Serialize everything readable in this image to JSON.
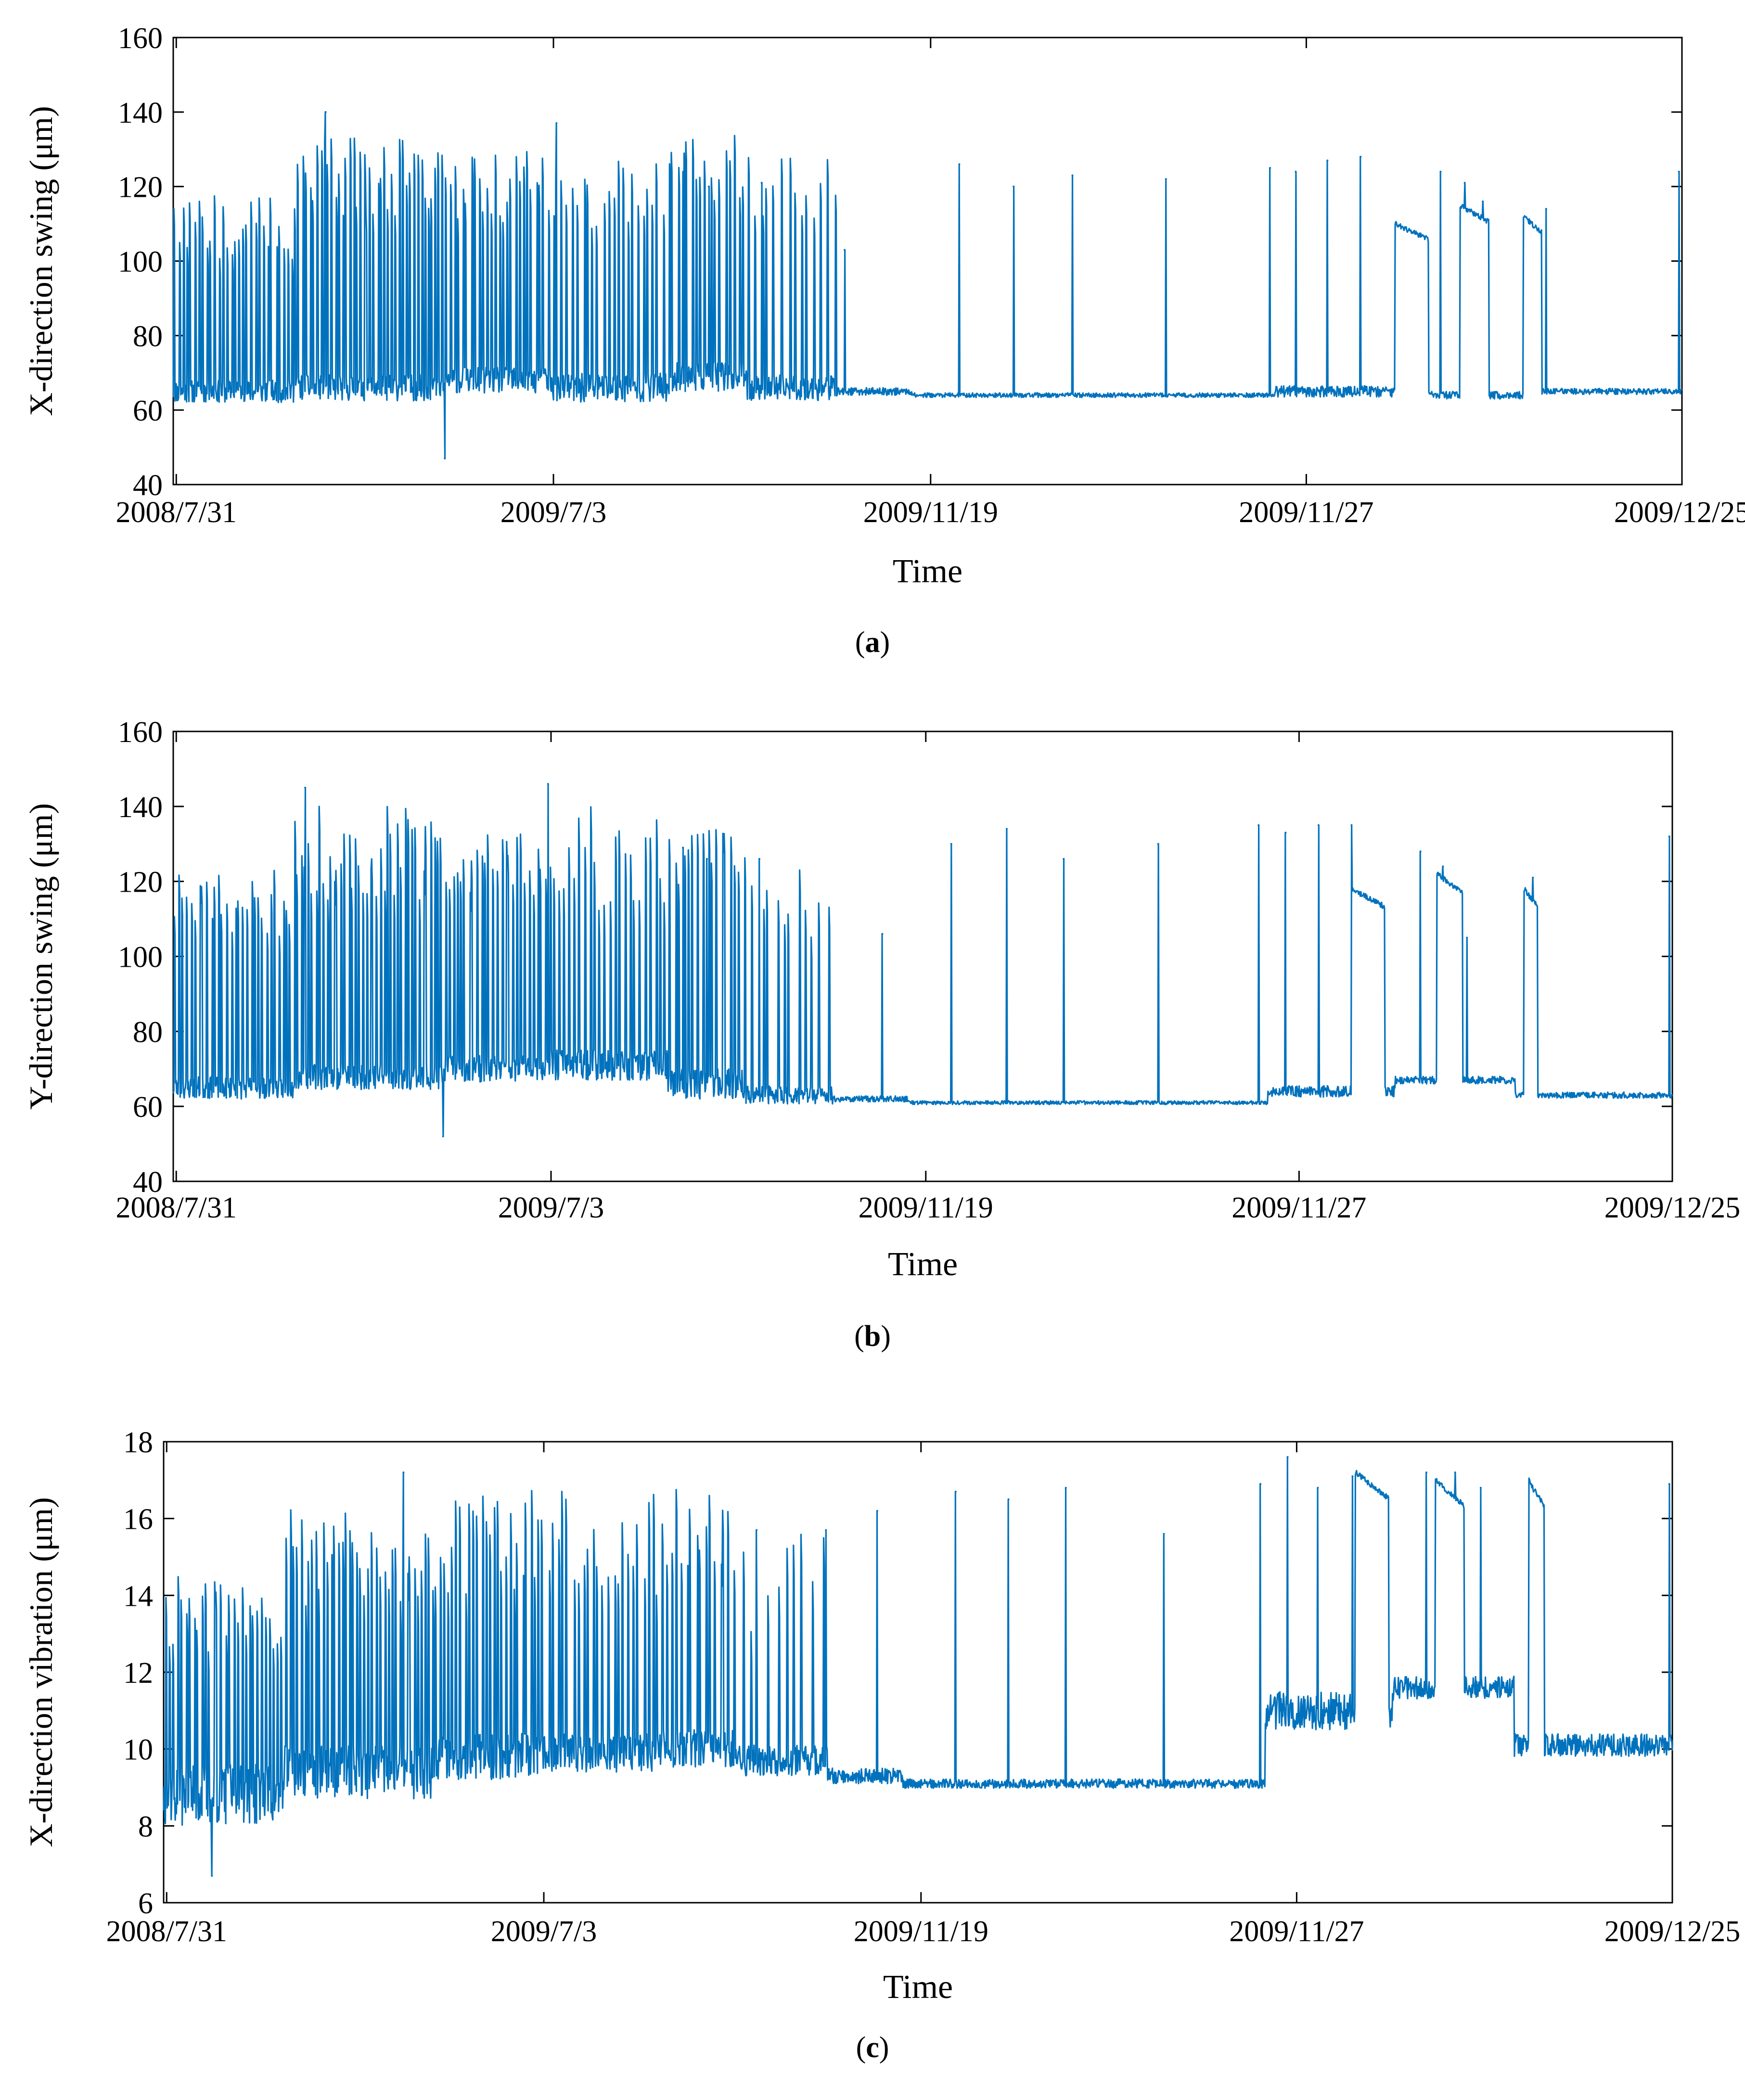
{
  "chart_data": [
    {
      "type": "line",
      "caption": "a",
      "ylabel": "X-direction swing (μm)",
      "xlabel": "Time",
      "ylim": [
        40,
        160
      ],
      "yticks": [
        40,
        60,
        80,
        100,
        120,
        140,
        160
      ],
      "xtick_labels": [
        "2008/7/31",
        "2009/7/3",
        "2009/11/19",
        "2009/11/27",
        "2009/12/25"
      ],
      "color": "#0072BD",
      "series": [
        {
          "name": "X-direction swing",
          "segments": [
            {
              "start": 0.0,
              "end": 0.08,
              "base": 65,
              "noise": 3.0,
              "spikes": 30,
              "spike_lo": 100,
              "spike_hi": 118
            },
            {
              "start": 0.08,
              "end": 0.18,
              "base": 66,
              "noise": 3.5,
              "spikes": 42,
              "spike_lo": 112,
              "spike_hi": 133
            },
            {
              "start": 0.18,
              "end": 0.25,
              "base": 68,
              "noise": 3.5,
              "spikes": 26,
              "spike_lo": 110,
              "spike_hi": 130
            },
            {
              "start": 0.25,
              "end": 0.33,
              "base": 66,
              "noise": 4.0,
              "spikes": 24,
              "spike_lo": 108,
              "spike_hi": 128
            },
            {
              "start": 0.33,
              "end": 0.38,
              "base": 69,
              "noise": 4.0,
              "spikes": 16,
              "spike_lo": 115,
              "spike_hi": 135
            },
            {
              "start": 0.38,
              "end": 0.44,
              "base": 66,
              "noise": 3.5,
              "spikes": 14,
              "spike_lo": 110,
              "spike_hi": 128
            },
            {
              "start": 0.44,
              "end": 0.49,
              "base": 65,
              "noise": 1.0,
              "spikes": 0,
              "spike_lo": 0,
              "spike_hi": 0
            },
            {
              "start": 0.49,
              "end": 0.73,
              "base": 64,
              "noise": 0.6,
              "spikes": 0,
              "spike_lo": 0,
              "spike_hi": 0
            },
            {
              "start": 0.73,
              "end": 0.815,
              "base": 65,
              "noise": 1.5,
              "spikes": 0,
              "spike_lo": 0,
              "spike_hi": 0
            },
            {
              "start": 0.815,
              "end": 0.895,
              "base": 64,
              "noise": 1.0,
              "spikes": 0,
              "spike_lo": 0,
              "spike_hi": 0
            },
            {
              "start": 0.895,
              "end": 1.0,
              "base": 65,
              "noise": 0.8,
              "spikes": 0,
              "spike_lo": 0,
              "spike_hi": 0
            }
          ],
          "peaks": [
            {
              "x": 0.101,
              "y": 140
            },
            {
              "x": 0.18,
              "y": 47
            },
            {
              "x": 0.254,
              "y": 137
            },
            {
              "x": 0.338,
              "y": 124
            },
            {
              "x": 0.355,
              "y": 120
            },
            {
              "x": 0.39,
              "y": 121
            },
            {
              "x": 0.445,
              "y": 103
            },
            {
              "x": 0.521,
              "y": 126
            },
            {
              "x": 0.557,
              "y": 120
            },
            {
              "x": 0.596,
              "y": 123
            },
            {
              "x": 0.658,
              "y": 122
            },
            {
              "x": 0.727,
              "y": 125
            },
            {
              "x": 0.744,
              "y": 124
            },
            {
              "x": 0.765,
              "y": 127
            },
            {
              "x": 0.787,
              "y": 128
            },
            {
              "x": 0.84,
              "y": 124
            },
            {
              "x": 0.856,
              "y": 121
            },
            {
              "x": 0.868,
              "y": 116
            },
            {
              "x": 0.91,
              "y": 114
            },
            {
              "x": 0.998,
              "y": 124
            }
          ],
          "plateaus": [
            {
              "start": 0.81,
              "end": 0.832,
              "y": 110
            },
            {
              "start": 0.853,
              "end": 0.872,
              "y": 115
            },
            {
              "start": 0.895,
              "end": 0.907,
              "y": 112
            }
          ]
        }
      ]
    },
    {
      "type": "line",
      "caption": "b",
      "ylabel": "Y-direction swing (μm)",
      "xlabel": "Time",
      "ylim": [
        40,
        160
      ],
      "yticks": [
        40,
        60,
        80,
        100,
        120,
        140,
        160
      ],
      "xtick_labels": [
        "2008/7/31",
        "2009/7/3",
        "2009/11/19",
        "2009/11/27",
        "2009/12/25"
      ],
      "color": "#0072BD",
      "series": [
        {
          "name": "Y-direction swing",
          "segments": [
            {
              "start": 0.0,
              "end": 0.08,
              "base": 65,
              "noise": 3.0,
              "spikes": 30,
              "spike_lo": 105,
              "spike_hi": 124
            },
            {
              "start": 0.08,
              "end": 0.18,
              "base": 68,
              "noise": 3.5,
              "spikes": 42,
              "spike_lo": 115,
              "spike_hi": 140
            },
            {
              "start": 0.18,
              "end": 0.25,
              "base": 70,
              "noise": 3.5,
              "spikes": 26,
              "spike_lo": 115,
              "spike_hi": 135
            },
            {
              "start": 0.25,
              "end": 0.33,
              "base": 71,
              "noise": 4.0,
              "spikes": 24,
              "spike_lo": 112,
              "spike_hi": 140
            },
            {
              "start": 0.33,
              "end": 0.38,
              "base": 66,
              "noise": 4.0,
              "spikes": 16,
              "spike_lo": 115,
              "spike_hi": 135
            },
            {
              "start": 0.38,
              "end": 0.44,
              "base": 63,
              "noise": 2.5,
              "spikes": 12,
              "spike_lo": 105,
              "spike_hi": 128
            },
            {
              "start": 0.44,
              "end": 0.49,
              "base": 62,
              "noise": 0.8,
              "spikes": 0,
              "spike_lo": 0,
              "spike_hi": 0
            },
            {
              "start": 0.49,
              "end": 0.73,
              "base": 61,
              "noise": 0.5,
              "spikes": 0,
              "spike_lo": 0,
              "spike_hi": 0
            },
            {
              "start": 0.73,
              "end": 0.815,
              "base": 64,
              "noise": 1.5,
              "spikes": 0,
              "spike_lo": 0,
              "spike_hi": 0
            },
            {
              "start": 0.815,
              "end": 0.895,
              "base": 67,
              "noise": 1.0,
              "spikes": 0,
              "spike_lo": 0,
              "spike_hi": 0
            },
            {
              "start": 0.895,
              "end": 1.0,
              "base": 63,
              "noise": 0.8,
              "spikes": 0,
              "spike_lo": 0,
              "spike_hi": 0
            }
          ],
          "peaks": [
            {
              "x": 0.088,
              "y": 145
            },
            {
              "x": 0.18,
              "y": 52
            },
            {
              "x": 0.25,
              "y": 146
            },
            {
              "x": 0.34,
              "y": 129
            },
            {
              "x": 0.356,
              "y": 126
            },
            {
              "x": 0.391,
              "y": 126
            },
            {
              "x": 0.473,
              "y": 106
            },
            {
              "x": 0.519,
              "y": 130
            },
            {
              "x": 0.556,
              "y": 134
            },
            {
              "x": 0.594,
              "y": 126
            },
            {
              "x": 0.657,
              "y": 130
            },
            {
              "x": 0.724,
              "y": 135
            },
            {
              "x": 0.742,
              "y": 133
            },
            {
              "x": 0.764,
              "y": 135
            },
            {
              "x": 0.786,
              "y": 135
            },
            {
              "x": 0.832,
              "y": 128
            },
            {
              "x": 0.847,
              "y": 124
            },
            {
              "x": 0.863,
              "y": 105
            },
            {
              "x": 0.907,
              "y": 121
            },
            {
              "x": 0.998,
              "y": 132
            }
          ],
          "plateaus": [
            {
              "start": 0.786,
              "end": 0.808,
              "y": 118
            },
            {
              "start": 0.843,
              "end": 0.86,
              "y": 122
            },
            {
              "start": 0.901,
              "end": 0.91,
              "y": 118
            }
          ]
        }
      ]
    },
    {
      "type": "line",
      "caption": "c",
      "ylabel": "X-direction vibration (μm)",
      "xlabel": "Time",
      "ylim": [
        6,
        18
      ],
      "yticks": [
        6,
        8,
        10,
        12,
        14,
        16,
        18
      ],
      "xtick_labels": [
        "2008/7/31",
        "2009/7/3",
        "2009/11/19",
        "2009/11/27",
        "2009/12/25"
      ],
      "color": "#0072BD",
      "series": [
        {
          "name": "X-direction vibration",
          "segments": [
            {
              "start": 0.0,
              "end": 0.08,
              "base": 8.8,
              "noise": 0.8,
              "spikes": 30,
              "spike_lo": 12.5,
              "spike_hi": 14.5
            },
            {
              "start": 0.08,
              "end": 0.18,
              "base": 9.4,
              "noise": 0.7,
              "spikes": 40,
              "spike_lo": 13.5,
              "spike_hi": 16.3
            },
            {
              "start": 0.18,
              "end": 0.25,
              "base": 9.8,
              "noise": 0.6,
              "spikes": 26,
              "spike_lo": 14.0,
              "spike_hi": 16.8
            },
            {
              "start": 0.25,
              "end": 0.33,
              "base": 9.9,
              "noise": 0.5,
              "spikes": 24,
              "spike_lo": 14.0,
              "spike_hi": 16.8
            },
            {
              "start": 0.33,
              "end": 0.38,
              "base": 10.0,
              "noise": 0.5,
              "spikes": 16,
              "spike_lo": 14.5,
              "spike_hi": 16.8
            },
            {
              "start": 0.38,
              "end": 0.44,
              "base": 9.7,
              "noise": 0.4,
              "spikes": 10,
              "spike_lo": 13.0,
              "spike_hi": 16.0
            },
            {
              "start": 0.44,
              "end": 0.49,
              "base": 9.3,
              "noise": 0.2,
              "spikes": 0,
              "spike_lo": 0,
              "spike_hi": 0
            },
            {
              "start": 0.49,
              "end": 0.73,
              "base": 9.1,
              "noise": 0.12,
              "spikes": 0,
              "spike_lo": 0,
              "spike_hi": 0
            },
            {
              "start": 0.73,
              "end": 0.815,
              "base": 11.0,
              "noise": 0.5,
              "spikes": 0,
              "spike_lo": 0,
              "spike_hi": 0
            },
            {
              "start": 0.815,
              "end": 0.895,
              "base": 11.6,
              "noise": 0.3,
              "spikes": 0,
              "spike_lo": 0,
              "spike_hi": 0
            },
            {
              "start": 0.895,
              "end": 1.0,
              "base": 10.1,
              "noise": 0.3,
              "spikes": 0,
              "spike_lo": 0,
              "spike_hi": 0
            }
          ],
          "peaks": [
            {
              "x": 0.032,
              "y": 6.7
            },
            {
              "x": 0.159,
              "y": 17.2
            },
            {
              "x": 0.393,
              "y": 15.7
            },
            {
              "x": 0.439,
              "y": 15.7
            },
            {
              "x": 0.473,
              "y": 16.2
            },
            {
              "x": 0.525,
              "y": 16.7
            },
            {
              "x": 0.56,
              "y": 16.5
            },
            {
              "x": 0.598,
              "y": 16.8
            },
            {
              "x": 0.663,
              "y": 15.6
            },
            {
              "x": 0.727,
              "y": 16.9
            },
            {
              "x": 0.745,
              "y": 17.6
            },
            {
              "x": 0.765,
              "y": 16.8
            },
            {
              "x": 0.788,
              "y": 17.1
            },
            {
              "x": 0.837,
              "y": 17.2
            },
            {
              "x": 0.856,
              "y": 17.2
            },
            {
              "x": 0.873,
              "y": 16.8
            },
            {
              "x": 0.908,
              "y": 16.7
            },
            {
              "x": 0.998,
              "y": 16.9
            }
          ],
          "plateaus": [
            {
              "start": 0.79,
              "end": 0.812,
              "y": 17.2
            },
            {
              "start": 0.843,
              "end": 0.862,
              "y": 17.0
            },
            {
              "start": 0.905,
              "end": 0.915,
              "y": 17.0
            }
          ]
        }
      ]
    }
  ],
  "captions": {
    "a": "a",
    "b": "b",
    "c": "c"
  }
}
